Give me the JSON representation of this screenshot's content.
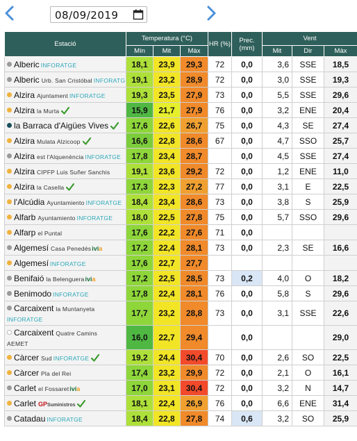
{
  "header": {
    "date": "08/09/2019",
    "prev_icon": "chevron-left-icon",
    "next_icon": "chevron-right-icon",
    "calendar_icon": "calendar-icon"
  },
  "table": {
    "col_station": "Estació",
    "col_temp": "Temperatura (°C)",
    "col_hr": "HR (%)",
    "col_prec": "Prec. (mm)",
    "col_wind": "Vent",
    "sub_min": "Mín",
    "sub_mit": "Mit",
    "sub_max": "Màx",
    "sub_wmit": "Mit",
    "sub_dir": "Dir",
    "sub_wmax": "Màx"
  },
  "colors": {
    "header_bg": "#2f5f5a",
    "row_bg": "#f3f3f3",
    "prec_wet_bg": "#d9e6f5",
    "inforatge": "#2aa7b8",
    "ivia_green": "#1b6f3a",
    "ivia_orange": "#f29b1c",
    "gp_red": "#c0141b",
    "check": "#3c9b2f"
  },
  "rows": [
    {
      "dot": "grey",
      "name": "Alberic",
      "loc": "",
      "brand": "INFORATGE",
      "tmin": "18,1",
      "tmid": "23,9",
      "tmax": "29,3",
      "cmin": "#aee03a",
      "cmid": "#f1e526",
      "cmax": "#f08a2a",
      "hr": "72",
      "prec": "0,0",
      "wmit": "3,6",
      "dir": "SSE",
      "wmax": "18,5"
    },
    {
      "dot": "grey",
      "name": "Alberic",
      "loc": "Urb. San Cristóbal",
      "brand": "INFORATGE",
      "tmin": "19,1",
      "tmid": "23,2",
      "tmax": "28,9",
      "cmin": "#aee03a",
      "cmid": "#f1e526",
      "cmax": "#f08a2a",
      "hr": "72",
      "prec": "0,0",
      "wmit": "3,0",
      "dir": "SSE",
      "wmax": "19,3"
    },
    {
      "dot": "orange",
      "name": "Alzira",
      "loc": "Ajuntament",
      "brand": "INFORATGE",
      "tmin": "19,3",
      "tmid": "23,5",
      "tmax": "27,9",
      "cmin": "#aee03a",
      "cmid": "#f1e526",
      "cmax": "#f08a2a",
      "hr": "73",
      "prec": "0,0",
      "wmit": "5,5",
      "dir": "SSE",
      "wmax": "29,6"
    },
    {
      "dot": "orange",
      "name": "Alzira",
      "loc": "la Murta",
      "brand": "",
      "check": true,
      "tmin": "15,9",
      "tmid": "21,7",
      "tmax": "27,9",
      "cmin": "#4fb843",
      "cmid": "#e6ef2b",
      "cmax": "#f08a2a",
      "hr": "76",
      "prec": "0,0",
      "wmit": "3,2",
      "dir": "ENE",
      "wmax": "20,4"
    },
    {
      "dot": "teal",
      "name": "la Barraca d'Aigües Vives",
      "loc": "",
      "brand": "",
      "check": true,
      "tmin": "17,6",
      "tmid": "22,6",
      "tmax": "26,7",
      "cmin": "#8ed63a",
      "cmid": "#f1e526",
      "cmax": "#f0a030",
      "hr": "75",
      "prec": "0,0",
      "wmit": "4,3",
      "dir": "SE",
      "wmax": "27,4"
    },
    {
      "dot": "orange",
      "name": "Alzira",
      "loc": "Mulata Alzicoop",
      "brand": "",
      "check": true,
      "tmin": "16,6",
      "tmid": "22,8",
      "tmax": "28,6",
      "cmin": "#7ccd3b",
      "cmid": "#f1e526",
      "cmax": "#f08a2a",
      "hr": "67",
      "prec": "0,0",
      "wmit": "4,7",
      "dir": "SSO",
      "wmax": "25,7"
    },
    {
      "dot": "grey",
      "name": "Alzira",
      "loc": "est l'Alquenència",
      "brand": "INFORATGE",
      "tmin": "17,8",
      "tmid": "23,4",
      "tmax": "28,7",
      "cmin": "#8ed63a",
      "cmid": "#f1e526",
      "cmax": "#f08a2a",
      "hr": "",
      "prec": "0,0",
      "wmit": "4,5",
      "dir": "SSE",
      "wmax": "27,4"
    },
    {
      "dot": "orange",
      "name": "Alzira",
      "loc": "CIPFP Luis Suñer Sanchis",
      "brand": "",
      "tmin": "19,1",
      "tmid": "23,6",
      "tmax": "29,2",
      "cmin": "#aee03a",
      "cmid": "#f1e526",
      "cmax": "#f08a2a",
      "hr": "72",
      "prec": "0,0",
      "wmit": "1,2",
      "dir": "ENE",
      "wmax": "11,0"
    },
    {
      "dot": "orange",
      "name": "Alzira",
      "loc": "la Casella",
      "brand": "",
      "check": true,
      "tmin": "17,3",
      "tmid": "22,3",
      "tmax": "27,2",
      "cmin": "#8ed63a",
      "cmid": "#f1e526",
      "cmax": "#f0a030",
      "hr": "77",
      "prec": "0,0",
      "wmit": "3,1",
      "dir": "E",
      "wmax": "22,5"
    },
    {
      "dot": "orange",
      "name": "l'Alcúdia",
      "loc": "Ayuntamiento",
      "brand": "INFORATGE",
      "tmin": "18,4",
      "tmid": "23,4",
      "tmax": "28,6",
      "cmin": "#aee03a",
      "cmid": "#f1e526",
      "cmax": "#f08a2a",
      "hr": "73",
      "prec": "0,0",
      "wmit": "3,8",
      "dir": "S",
      "wmax": "25,9"
    },
    {
      "dot": "orange",
      "name": "Alfarb",
      "loc": "Ayuntamiento",
      "brand": "INFORATGE",
      "tmin": "18,0",
      "tmid": "22,5",
      "tmax": "27,8",
      "cmin": "#aee03a",
      "cmid": "#f1e526",
      "cmax": "#f08a2a",
      "hr": "75",
      "prec": "0,0",
      "wmit": "5,7",
      "dir": "SSO",
      "wmax": "29,6"
    },
    {
      "dot": "orange",
      "name": "Alfarp",
      "loc": "el Puntal",
      "brand": "",
      "tmin": "17,6",
      "tmid": "22,2",
      "tmax": "27,6",
      "cmin": "#8ed63a",
      "cmid": "#f1e526",
      "cmax": "#f08a2a",
      "hr": "71",
      "prec": "0,0",
      "wmit": "",
      "dir": "",
      "wmax": ""
    },
    {
      "dot": "grey",
      "name": "Algemesí",
      "loc": "Casa Penedés",
      "brand": "",
      "ivia": true,
      "tmin": "17,2",
      "tmid": "22,4",
      "tmax": "28,1",
      "cmin": "#8ed63a",
      "cmid": "#f1e526",
      "cmax": "#f08a2a",
      "hr": "73",
      "prec": "0,0",
      "wmit": "2,3",
      "dir": "SE",
      "wmax": "16,6"
    },
    {
      "dot": "orange",
      "name": "Algemesí",
      "loc": "",
      "brand": "INFORATGE",
      "tmin": "17,6",
      "tmid": "22,7",
      "tmax": "27,7",
      "cmin": "#8ed63a",
      "cmid": "#f1e526",
      "cmax": "#f08a2a",
      "hr": "",
      "prec": "",
      "wmit": "",
      "dir": "",
      "wmax": ""
    },
    {
      "dot": "grey",
      "name": "Benifaió",
      "loc": "la Belenguera",
      "brand": "",
      "ivia": true,
      "tmin": "17,2",
      "tmid": "22,5",
      "tmax": "28,5",
      "cmin": "#8ed63a",
      "cmid": "#f1e526",
      "cmax": "#f08a2a",
      "hr": "73",
      "prec": "0,2",
      "wet": true,
      "wmit": "4,0",
      "dir": "O",
      "wmax": "18,2"
    },
    {
      "dot": "grey",
      "name": "Benimodo",
      "loc": "",
      "brand": "INFORATGE",
      "tmin": "17,8",
      "tmid": "22,4",
      "tmax": "28,1",
      "cmin": "#8ed63a",
      "cmid": "#f1e526",
      "cmax": "#f08a2a",
      "hr": "76",
      "prec": "0,0",
      "wmit": "5,8",
      "dir": "S",
      "wmax": "29,6"
    },
    {
      "dot": "grey",
      "name": "Carcaixent",
      "loc": "la Muntanyeta",
      "brand": "INFORATGE",
      "two": true,
      "tmin": "17,7",
      "tmid": "23,2",
      "tmax": "28,8",
      "cmin": "#8ed63a",
      "cmid": "#f1e526",
      "cmax": "#f08a2a",
      "hr": "73",
      "prec": "0,0",
      "wmit": "3,1",
      "dir": "SSE",
      "wmax": "22,6"
    },
    {
      "dot": "empty",
      "name": "Carcaixent",
      "loc": "Quatre Camins",
      "brand": "",
      "two": true,
      "aemet": "AEMET",
      "tmin": "16,0",
      "tmid": "22,7",
      "tmax": "29,4",
      "cmin": "#4fb843",
      "cmid": "#f1e526",
      "cmax": "#f08a2a",
      "hr": "",
      "prec": "0,0",
      "wmit": "",
      "dir": "",
      "wmax": "29,0"
    },
    {
      "dot": "orange",
      "name": "Càrcer",
      "loc": "Sud",
      "brand": "INFORATGE",
      "check": true,
      "tmin": "19,2",
      "tmid": "24,4",
      "tmax": "30,4",
      "cmin": "#aee03a",
      "cmid": "#f1e526",
      "cmax": "#f24a2a",
      "hr": "70",
      "prec": "0,0",
      "wmit": "2,6",
      "dir": "SO",
      "wmax": "22,5"
    },
    {
      "dot": "orange",
      "name": "Càrcer",
      "loc": "Pla del Rei",
      "brand": "",
      "tmin": "17,4",
      "tmid": "23,2",
      "tmax": "29,9",
      "cmin": "#8ed63a",
      "cmid": "#f1e526",
      "cmax": "#f08a2a",
      "hr": "72",
      "prec": "0,0",
      "wmit": "2,1",
      "dir": "O",
      "wmax": "16,1"
    },
    {
      "dot": "grey",
      "name": "Carlet",
      "loc": "el Fossaret",
      "brand": "",
      "ivia": true,
      "tmin": "17,0",
      "tmid": "23,1",
      "tmax": "30,4",
      "cmin": "#8ed63a",
      "cmid": "#f1e526",
      "cmax": "#f24a2a",
      "hr": "72",
      "prec": "0,0",
      "wmit": "3,2",
      "dir": "N",
      "wmax": "14,7"
    },
    {
      "dot": "orange",
      "name": "Carlet",
      "loc": "",
      "brand": "",
      "gp": true,
      "check": true,
      "tmin": "18,1",
      "tmid": "22,4",
      "tmax": "26,9",
      "cmin": "#aee03a",
      "cmid": "#f1e526",
      "cmax": "#f0a030",
      "hr": "76",
      "prec": "0,0",
      "wmit": "6,6",
      "dir": "ENE",
      "wmax": "31,4"
    },
    {
      "dot": "grey",
      "name": "Catadau",
      "loc": "",
      "brand": "INFORATGE",
      "tmin": "18,4",
      "tmid": "22,8",
      "tmax": "27,8",
      "cmin": "#aee03a",
      "cmid": "#f1e526",
      "cmax": "#f08a2a",
      "hr": "74",
      "prec": "0,6",
      "wet": true,
      "wmit": "3,2",
      "dir": "SO",
      "wmax": "25,9"
    }
  ]
}
